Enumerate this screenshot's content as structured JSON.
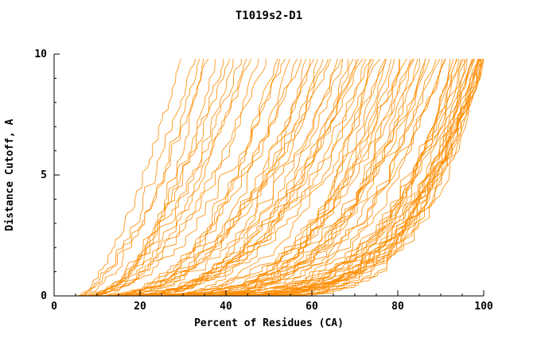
{
  "chart_data": {
    "type": "line",
    "title": "T1019s2-D1",
    "xlabel": "Percent of Residues (CA)",
    "ylabel": "Distance Cutoff, A",
    "xlim": [
      0,
      100
    ],
    "ylim": [
      0,
      10
    ],
    "x_major_ticks": [
      0,
      20,
      40,
      60,
      80,
      100
    ],
    "x_minor_step": 5,
    "y_major_ticks": [
      0,
      5,
      10
    ],
    "y_minor_step": 1,
    "grid": false,
    "legend": "none",
    "line_color": "#ff8c00",
    "axis_color": "#000000",
    "jitter_seed": 11,
    "curve_params_format": "[x_percent_at_cutoff_0, x_percent_at_cutoff_10, shape_exponent]; x(y) = x0 + (x1-x0)*(y/10)^(1/exponent)",
    "curves": [
      [
        5,
        33,
        1.6
      ],
      [
        6,
        34,
        1.8
      ],
      [
        6,
        36,
        1.5
      ],
      [
        7,
        38,
        2.0
      ],
      [
        8,
        40,
        1.7
      ],
      [
        5,
        42,
        2.1
      ],
      [
        9,
        44,
        1.6
      ],
      [
        7,
        46,
        1.9
      ],
      [
        6,
        30,
        1.4
      ],
      [
        8,
        35,
        2.2
      ],
      [
        10,
        41,
        1.5
      ],
      [
        11,
        45,
        1.8
      ],
      [
        6,
        48,
        2.2
      ],
      [
        8,
        50,
        1.9
      ],
      [
        10,
        52,
        2.5
      ],
      [
        7,
        54,
        2.0
      ],
      [
        12,
        55,
        2.8
      ],
      [
        9,
        57,
        2.3
      ],
      [
        14,
        58,
        1.8
      ],
      [
        8,
        60,
        2.6
      ],
      [
        11,
        61,
        2.2
      ],
      [
        15,
        62,
        3.0
      ],
      [
        9,
        64,
        2.4
      ],
      [
        13,
        65,
        2.0
      ],
      [
        16,
        66,
        2.9
      ],
      [
        10,
        67,
        2.5
      ],
      [
        18,
        68,
        2.2
      ],
      [
        12,
        69,
        3.1
      ],
      [
        20,
        70,
        2.7
      ],
      [
        14,
        63,
        2.1
      ],
      [
        22,
        59,
        2.4
      ],
      [
        17,
        53,
        1.9
      ],
      [
        8,
        71,
        3.0
      ],
      [
        12,
        72,
        2.5
      ],
      [
        16,
        73,
        3.3
      ],
      [
        10,
        74,
        2.8
      ],
      [
        20,
        75,
        3.6
      ],
      [
        14,
        76,
        2.4
      ],
      [
        24,
        77,
        3.1
      ],
      [
        11,
        78,
        2.7
      ],
      [
        18,
        79,
        3.4
      ],
      [
        26,
        80,
        2.9
      ],
      [
        13,
        81,
        3.8
      ],
      [
        21,
        82,
        2.6
      ],
      [
        28,
        83,
        3.2
      ],
      [
        15,
        84,
        2.9
      ],
      [
        23,
        85,
        3.5
      ],
      [
        30,
        86,
        2.7
      ],
      [
        12,
        87,
        4.0
      ],
      [
        19,
        88,
        3.0
      ],
      [
        27,
        89,
        3.4
      ],
      [
        16,
        71,
        2.3
      ],
      [
        25,
        74,
        3.7
      ],
      [
        32,
        78,
        2.8
      ],
      [
        22,
        81,
        4.2
      ],
      [
        29,
        84,
        3.1
      ],
      [
        34,
        87,
        3.6
      ],
      [
        10,
        90,
        3.5
      ],
      [
        15,
        91,
        4.0
      ],
      [
        20,
        92,
        3.2
      ],
      [
        25,
        93,
        4.5
      ],
      [
        30,
        94,
        3.8
      ],
      [
        35,
        95,
        3.0
      ],
      [
        12,
        95,
        5.0
      ],
      [
        18,
        96,
        4.2
      ],
      [
        24,
        96,
        3.6
      ],
      [
        40,
        97,
        3.3
      ],
      [
        14,
        97,
        5.5
      ],
      [
        28,
        98,
        4.0
      ],
      [
        33,
        98,
        3.4
      ],
      [
        45,
        98,
        2.9
      ],
      [
        16,
        99,
        5.2
      ],
      [
        22,
        99,
        4.4
      ],
      [
        38,
        99,
        3.6
      ],
      [
        48,
        99,
        3.0
      ],
      [
        11,
        100,
        6.0
      ],
      [
        19,
        100,
        5.0
      ],
      [
        26,
        100,
        4.3
      ],
      [
        31,
        100,
        3.8
      ],
      [
        42,
        100,
        3.2
      ],
      [
        50,
        100,
        2.8
      ],
      [
        36,
        100,
        4.6
      ],
      [
        13,
        94,
        4.8
      ],
      [
        44,
        96,
        3.9
      ],
      [
        52,
        99,
        3.1
      ],
      [
        27,
        91,
        3.7
      ],
      [
        37,
        93,
        4.1
      ],
      [
        46,
        100,
        3.5
      ]
    ]
  }
}
